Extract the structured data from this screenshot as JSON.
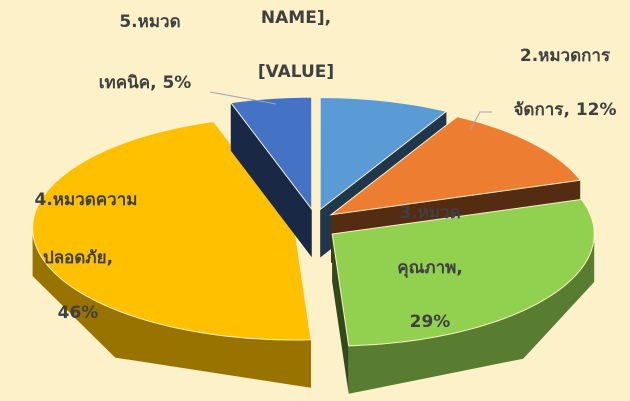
{
  "chart_data": {
    "type": "pie3d",
    "values": [
      8,
      12,
      29,
      46,
      5
    ],
    "colors": [
      "#5b9bd5",
      "#ed7d31",
      "#92d050",
      "#ffc000",
      "#4472c4"
    ],
    "labels": [
      [
        "NAME],",
        "[VALUE]"
      ],
      [
        "2.หมวดการ",
        "จัดการ, 12%"
      ],
      [
        "3.หมวด",
        "คุณภาพ,",
        "29%"
      ],
      [
        "4.หมวดความ",
        "ปลอดภัย,",
        "46%"
      ],
      [
        "5.หมวด",
        "เทคนิค, 5%"
      ]
    ]
  }
}
